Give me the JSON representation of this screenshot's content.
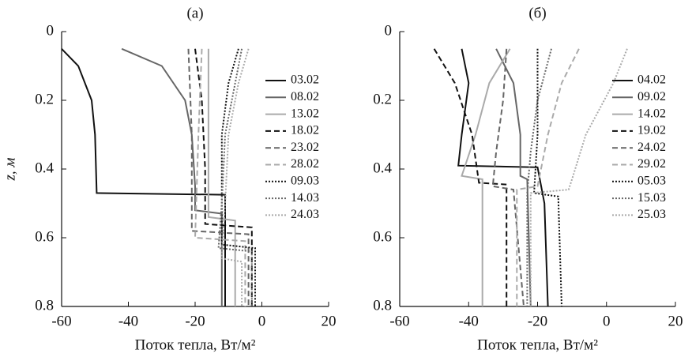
{
  "chart_data": [
    {
      "type": "line",
      "title": "(а)",
      "xlabel": "Поток тепла, Вт/м²",
      "ylabel": "z, м",
      "xlim": [
        -60,
        20
      ],
      "xticks": [
        -60,
        -40,
        -20,
        0,
        20
      ],
      "ylim": [
        0,
        0.8
      ],
      "yticks": [
        0,
        0.2,
        0.4,
        0.6,
        0.8
      ],
      "y_inverted": true,
      "series": [
        {
          "name": "03.02",
          "color": "#111111",
          "dash": "solid",
          "values": [
            -60,
            -55,
            -51,
            -50,
            -49.5,
            -11,
            -11
          ],
          "z": [
            0.05,
            0.1,
            0.2,
            0.3,
            0.47,
            0.475,
            0.8
          ]
        },
        {
          "name": "08.02",
          "color": "#666666",
          "dash": "solid",
          "values": [
            -42,
            -30,
            -23,
            -21,
            -20,
            -20,
            -12,
            -12
          ],
          "z": [
            0.05,
            0.1,
            0.2,
            0.3,
            0.45,
            0.52,
            0.53,
            0.8
          ]
        },
        {
          "name": "13.02",
          "color": "#aaaaaa",
          "dash": "solid",
          "values": [
            -16,
            -16,
            -16,
            -16,
            -8,
            -8
          ],
          "z": [
            0.05,
            0.2,
            0.4,
            0.54,
            0.55,
            0.8
          ]
        },
        {
          "name": "18.02",
          "color": "#111111",
          "dash": "dashed",
          "values": [
            -20,
            -18,
            -17,
            -17,
            -3,
            -3
          ],
          "z": [
            0.05,
            0.2,
            0.4,
            0.56,
            0.57,
            0.8
          ]
        },
        {
          "name": "23.02",
          "color": "#666666",
          "dash": "dashed",
          "values": [
            -22,
            -21,
            -21,
            -4,
            -4
          ],
          "z": [
            0.05,
            0.3,
            0.58,
            0.59,
            0.8
          ]
        },
        {
          "name": "28.02",
          "color": "#aaaaaa",
          "dash": "dashed",
          "values": [
            -18,
            -19,
            -20,
            -5,
            -5
          ],
          "z": [
            0.05,
            0.3,
            0.6,
            0.61,
            0.8
          ]
        },
        {
          "name": "09.03",
          "color": "#111111",
          "dash": "dotted",
          "values": [
            -7,
            -10,
            -12,
            -12,
            -2,
            -2
          ],
          "z": [
            0.05,
            0.15,
            0.3,
            0.62,
            0.63,
            0.8
          ]
        },
        {
          "name": "14.03",
          "color": "#666666",
          "dash": "dotted",
          "values": [
            -6,
            -8,
            -11,
            -12,
            -13,
            -3,
            -3
          ],
          "z": [
            0.05,
            0.15,
            0.3,
            0.5,
            0.63,
            0.64,
            0.8
          ]
        },
        {
          "name": "24.03",
          "color": "#aaaaaa",
          "dash": "dotted",
          "values": [
            -4,
            -7,
            -10,
            -11,
            -12,
            -6,
            -6
          ],
          "z": [
            0.05,
            0.15,
            0.3,
            0.5,
            0.66,
            0.67,
            0.8
          ]
        }
      ]
    },
    {
      "type": "line",
      "title": "(б)",
      "xlabel": "Поток тепла, Вт/м²",
      "xlim": [
        -60,
        20
      ],
      "xticks": [
        -60,
        -40,
        -20,
        0,
        20
      ],
      "ylim": [
        0,
        0.8
      ],
      "yticks": [
        0,
        0.2,
        0.4,
        0.6,
        0.8
      ],
      "y_inverted": true,
      "series": [
        {
          "name": "04.02",
          "color": "#111111",
          "dash": "solid",
          "values": [
            -42,
            -40,
            -42,
            -43,
            -20,
            -18,
            -17
          ],
          "z": [
            0.05,
            0.15,
            0.3,
            0.39,
            0.395,
            0.5,
            0.8
          ]
        },
        {
          "name": "09.02",
          "color": "#666666",
          "dash": "solid",
          "values": [
            -32,
            -27,
            -25,
            -25,
            -23,
            -22
          ],
          "z": [
            0.05,
            0.15,
            0.3,
            0.42,
            0.43,
            0.8
          ]
        },
        {
          "name": "14.02",
          "color": "#aaaaaa",
          "dash": "solid",
          "values": [
            -28,
            -34,
            -38,
            -42,
            -36,
            -36
          ],
          "z": [
            0.05,
            0.15,
            0.3,
            0.42,
            0.43,
            0.8
          ]
        },
        {
          "name": "19.02",
          "color": "#111111",
          "dash": "dashed",
          "values": [
            -50,
            -44,
            -39,
            -37,
            -29,
            -29
          ],
          "z": [
            0.05,
            0.15,
            0.3,
            0.44,
            0.445,
            0.8
          ]
        },
        {
          "name": "24.02",
          "color": "#666666",
          "dash": "dashed",
          "values": [
            -29,
            -30,
            -32,
            -33,
            -27,
            -24
          ],
          "z": [
            0.05,
            0.2,
            0.35,
            0.45,
            0.46,
            0.8
          ]
        },
        {
          "name": "29.02",
          "color": "#aaaaaa",
          "dash": "dashed",
          "values": [
            -8,
            -13,
            -17,
            -20,
            -26,
            -26
          ],
          "z": [
            0.05,
            0.15,
            0.3,
            0.45,
            0.46,
            0.8
          ]
        },
        {
          "name": "05.03",
          "color": "#111111",
          "dash": "dotted",
          "values": [
            -20,
            -20,
            -21,
            -14,
            -13
          ],
          "z": [
            0.05,
            0.3,
            0.47,
            0.48,
            0.8
          ]
        },
        {
          "name": "15.03",
          "color": "#666666",
          "dash": "dotted",
          "values": [
            -16,
            -20,
            -22,
            -23,
            -23
          ],
          "z": [
            0.05,
            0.2,
            0.35,
            0.47,
            0.8
          ]
        },
        {
          "name": "25.03",
          "color": "#aaaaaa",
          "dash": "dotted",
          "values": [
            6,
            2,
            -6,
            -10,
            -11,
            -22,
            -22
          ],
          "z": [
            0.05,
            0.15,
            0.3,
            0.43,
            0.46,
            0.47,
            0.8
          ]
        }
      ]
    }
  ]
}
